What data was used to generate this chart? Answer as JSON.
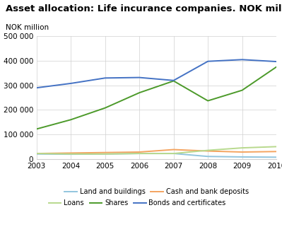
{
  "title": "Asset allocation: Life incurance companies. NOK million",
  "ylabel": "NOK million",
  "years": [
    2003,
    2004,
    2005,
    2006,
    2007,
    2008,
    2009,
    2010
  ],
  "series": {
    "Land and buildings": {
      "values": [
        20000,
        19000,
        20000,
        22000,
        22000,
        10000,
        8000,
        7000
      ],
      "color": "#92c5de"
    },
    "Cash and bank deposits": {
      "values": [
        22000,
        24000,
        26000,
        28000,
        38000,
        32000,
        28000,
        30000
      ],
      "color": "#f4a460"
    },
    "Loans": {
      "values": [
        22000,
        20000,
        20000,
        22000,
        22000,
        35000,
        45000,
        50000
      ],
      "color": "#b8d98d"
    },
    "Shares": {
      "values": [
        122000,
        160000,
        208000,
        270000,
        318000,
        237000,
        280000,
        375000
      ],
      "color": "#4c9a2a"
    },
    "Bonds and certificates": {
      "values": [
        290000,
        308000,
        330000,
        332000,
        320000,
        398000,
        405000,
        397000
      ],
      "color": "#4472c4"
    }
  },
  "ylim": [
    0,
    500000
  ],
  "yticks": [
    0,
    100000,
    200000,
    300000,
    400000,
    500000
  ],
  "ytick_labels": [
    "0",
    "100 000",
    "200 000",
    "300 000",
    "400 000",
    "500 000"
  ],
  "background_color": "#ffffff",
  "grid_color": "#d0d0d0",
  "title_fontsize": 9.5,
  "axis_fontsize": 7.5,
  "legend_fontsize": 7,
  "legend_row1": [
    "Land and buildings",
    "Cash and bank deposits"
  ],
  "legend_row2": [
    "Loans",
    "Shares",
    "Bonds and certificates"
  ]
}
